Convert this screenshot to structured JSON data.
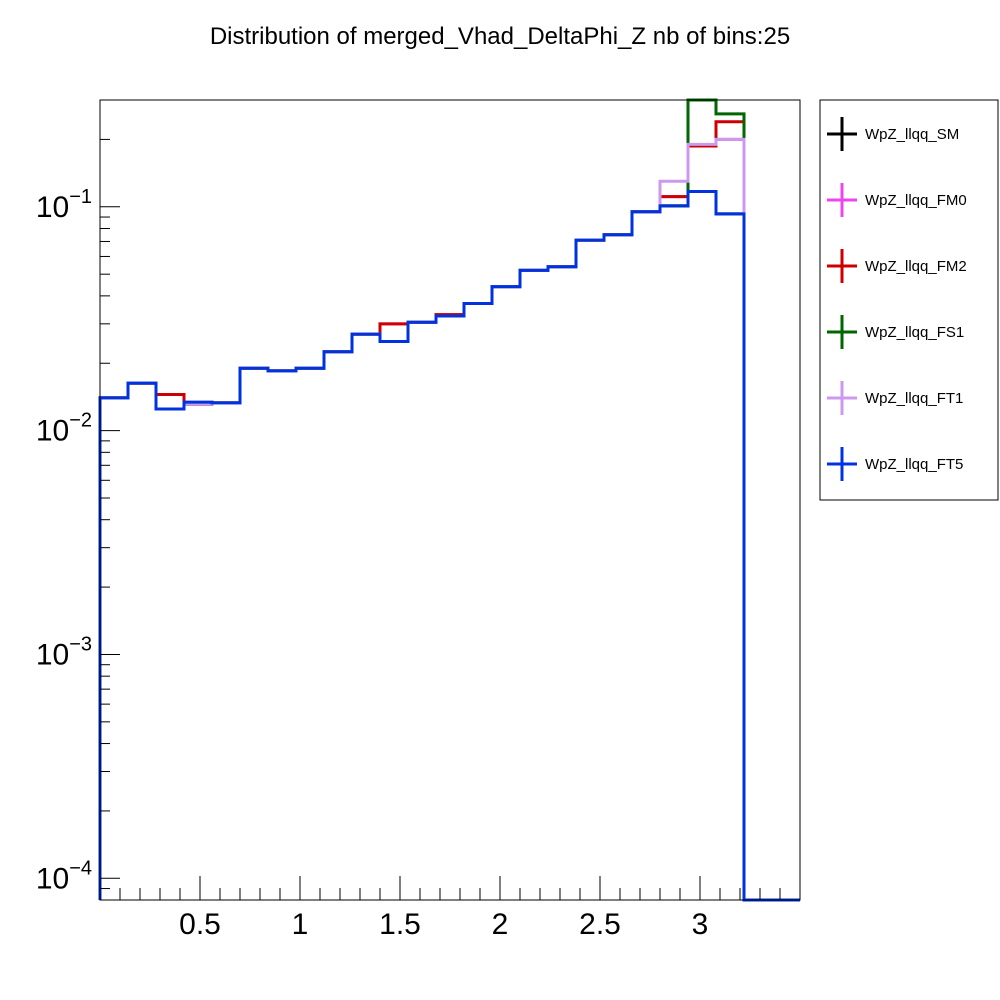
{
  "chart_data": {
    "type": "line",
    "title": "Distribution of merged_Vhad_DeltaPhi_Z nb of bins:25",
    "xlabel": "",
    "ylabel": "",
    "y_scale": "log",
    "xlim": [
      0.0,
      3.5
    ],
    "ylim": [
      8e-05,
      0.3
    ],
    "x_ticks": [
      0.5,
      1,
      1.5,
      2,
      2.5,
      3
    ],
    "x_tick_labels": [
      "0.5",
      "1",
      "1.5",
      "2",
      "2.5",
      "3"
    ],
    "y_ticks": [
      {
        "value": 0.1,
        "base": "10",
        "exp": "−1"
      },
      {
        "value": 0.01,
        "base": "10",
        "exp": "−2"
      },
      {
        "value": 0.001,
        "base": "10",
        "exp": "−3"
      },
      {
        "value": 0.0001,
        "base": "10",
        "exp": "−4"
      }
    ],
    "bin_edges": [
      0.0,
      0.14,
      0.28,
      0.42,
      0.56,
      0.7,
      0.84,
      0.98,
      1.12,
      1.26,
      1.4,
      1.54,
      1.68,
      1.82,
      1.96,
      2.1,
      2.24,
      2.38,
      2.52,
      2.66,
      2.8,
      2.94,
      3.08,
      3.22,
      3.36,
      3.5
    ],
    "grid": false,
    "legend_position": "right",
    "series": [
      {
        "name": "WpZ_llqq_SM",
        "color": "#000000",
        "values": [
          0.014,
          0.0163,
          0.0125,
          0.0131,
          0.0133,
          0.019,
          0.0185,
          0.019,
          0.0225,
          0.027,
          0.025,
          0.0305,
          0.0325,
          0.037,
          0.044,
          0.052,
          0.054,
          0.071,
          0.075,
          0.095,
          0.101,
          0.117,
          0.093,
          0,
          0
        ]
      },
      {
        "name": "WpZ_llqq_FM0",
        "color": "#ee44ee",
        "values": [
          0.014,
          0.0163,
          0.0125,
          0.0131,
          0.0133,
          0.019,
          0.0185,
          0.019,
          0.0225,
          0.027,
          0.03,
          0.0305,
          0.033,
          0.037,
          0.044,
          0.052,
          0.054,
          0.071,
          0.075,
          0.095,
          0.111,
          0.187,
          0.2,
          0,
          0
        ]
      },
      {
        "name": "WpZ_llqq_FM2",
        "color": "#cc0000",
        "values": [
          0.014,
          0.0163,
          0.0145,
          0.0131,
          0.0133,
          0.019,
          0.0185,
          0.019,
          0.0225,
          0.027,
          0.03,
          0.0305,
          0.033,
          0.037,
          0.044,
          0.052,
          0.054,
          0.071,
          0.075,
          0.095,
          0.111,
          0.187,
          0.24,
          0,
          0
        ]
      },
      {
        "name": "WpZ_llqq_FS1",
        "color": "#006600",
        "values": [
          0.014,
          0.0163,
          0.0125,
          0.0131,
          0.0133,
          0.019,
          0.0185,
          0.019,
          0.0225,
          0.027,
          0.025,
          0.0305,
          0.0325,
          0.037,
          0.044,
          0.052,
          0.054,
          0.071,
          0.075,
          0.095,
          0.101,
          0.3,
          0.26,
          0,
          0
        ]
      },
      {
        "name": "WpZ_llqq_FT1",
        "color": "#cc99ee",
        "values": [
          0.014,
          0.0163,
          0.0125,
          0.0131,
          0.0133,
          0.019,
          0.0185,
          0.019,
          0.0225,
          0.027,
          0.025,
          0.0305,
          0.0325,
          0.037,
          0.044,
          0.052,
          0.054,
          0.071,
          0.075,
          0.095,
          0.13,
          0.19,
          0.2,
          0,
          0
        ]
      },
      {
        "name": "WpZ_llqq_FT5",
        "color": "#0033dd",
        "values": [
          0.014,
          0.0163,
          0.0125,
          0.0134,
          0.0133,
          0.019,
          0.0185,
          0.019,
          0.0225,
          0.027,
          0.025,
          0.0305,
          0.0325,
          0.037,
          0.044,
          0.052,
          0.054,
          0.071,
          0.075,
          0.095,
          0.101,
          0.117,
          0.093,
          0,
          0
        ]
      }
    ]
  }
}
